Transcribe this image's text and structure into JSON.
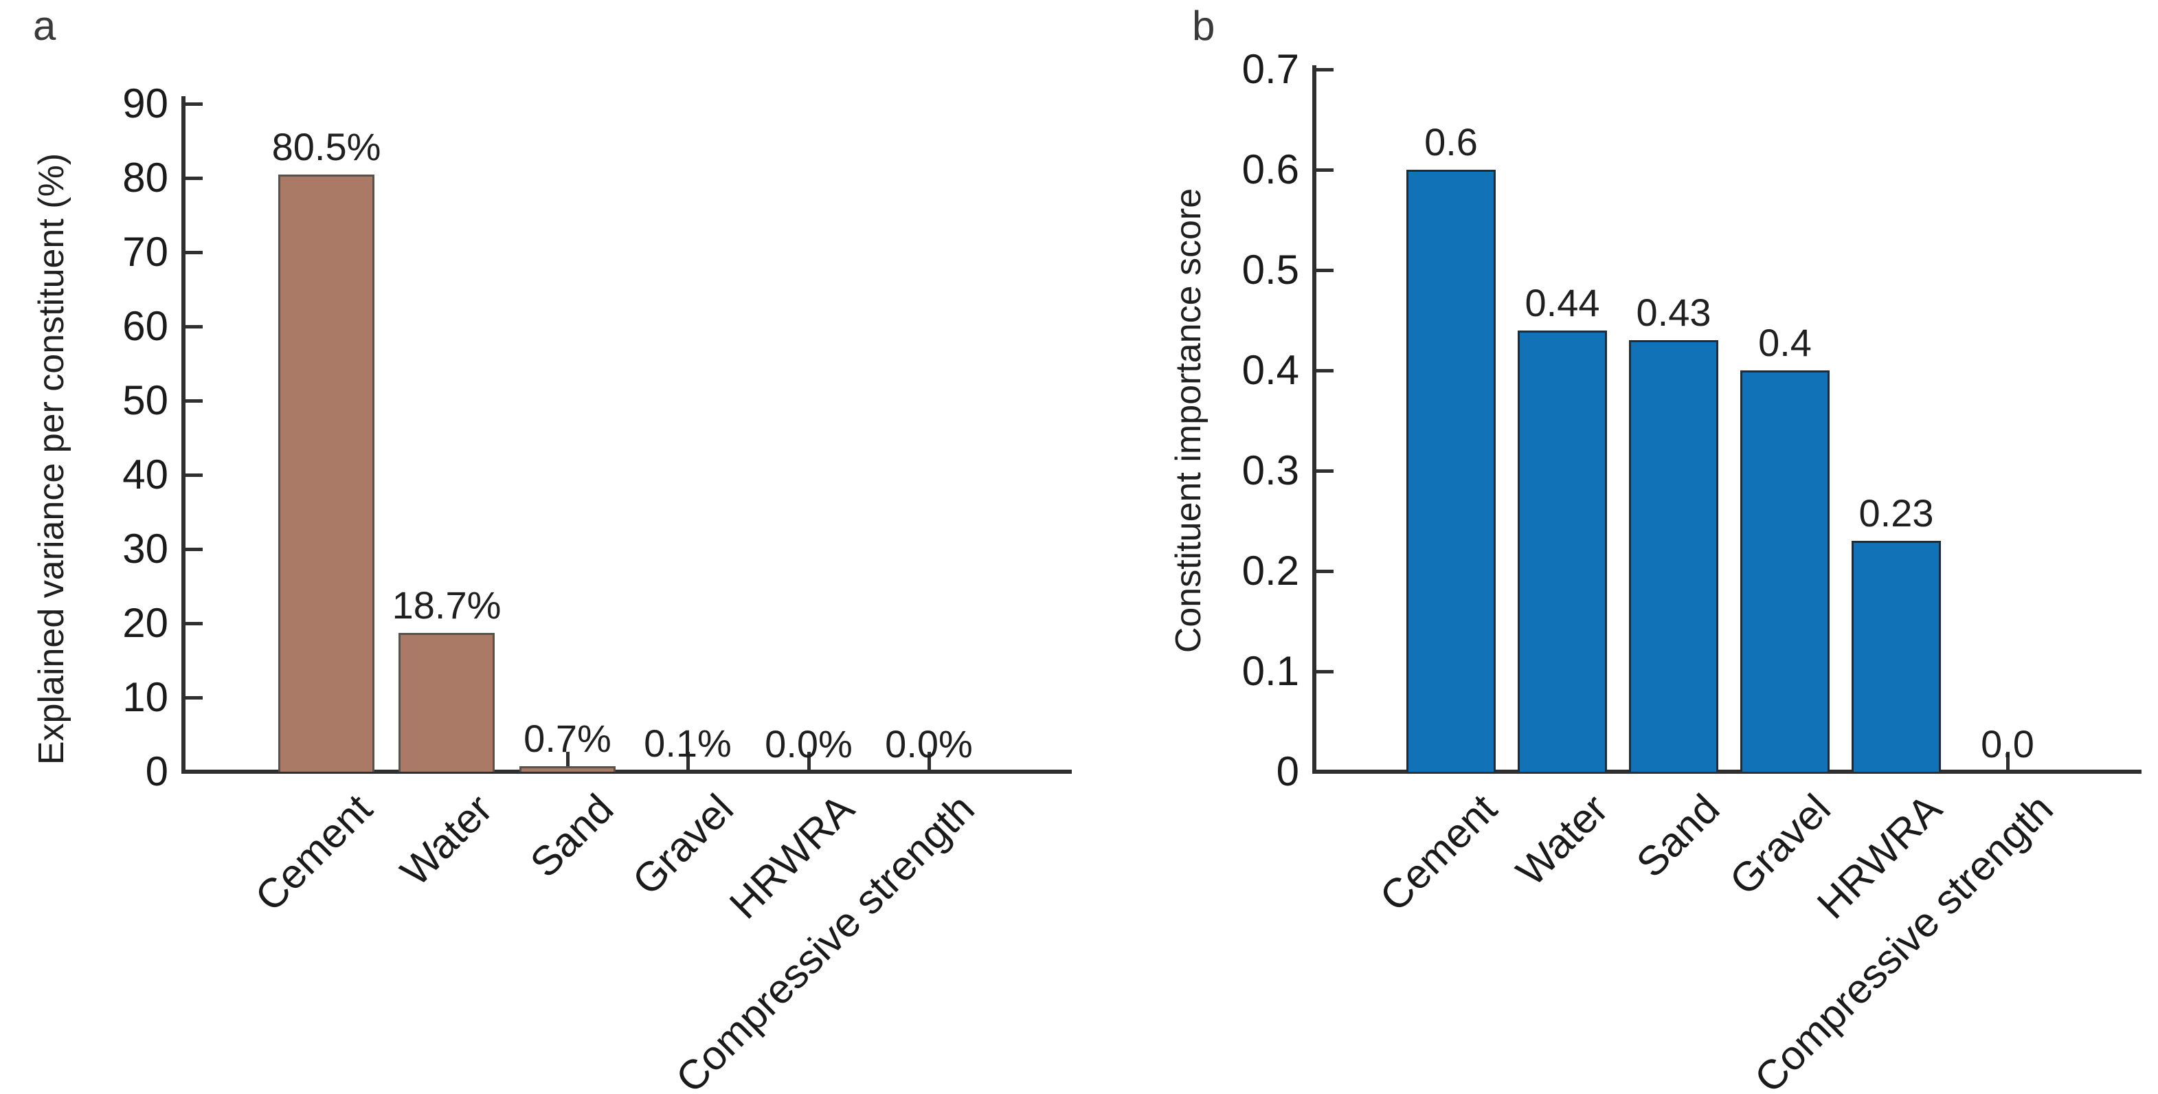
{
  "figure": {
    "background_color": "#ffffff",
    "axis_color": "#2f2f2f",
    "text_color": "#1a1a1a"
  },
  "chart_data": [
    {
      "type": "bar",
      "panel_label": "a",
      "title": "",
      "xlabel": "",
      "ylabel": "Explained variance per constituent (%)",
      "categories": [
        "Cement",
        "Water",
        "Sand",
        "Gravel",
        "HRWRA",
        "Compressive strength"
      ],
      "values": [
        80.5,
        18.7,
        0.7,
        0.1,
        0.0,
        0.0
      ],
      "value_labels": [
        "80.5%",
        "18.7%",
        "0.7%",
        "0.1%",
        "0.0%",
        "0.0%"
      ],
      "ylim": [
        0,
        90
      ],
      "ytick_labels": [
        "0",
        "10",
        "20",
        "30",
        "40",
        "50",
        "60",
        "70",
        "80",
        "90"
      ],
      "bar_color": "#ab7a67",
      "bar_edge_color": "#5a5248",
      "grid": false,
      "legend_position": "none",
      "xtick_rotation_degrees": 45
    },
    {
      "type": "bar",
      "panel_label": "b",
      "title": "",
      "xlabel": "",
      "ylabel": "Constituent importance score",
      "categories": [
        "Cement",
        "Water",
        "Sand",
        "Gravel",
        "HRWRA",
        "Compressive strength"
      ],
      "values": [
        0.6,
        0.44,
        0.43,
        0.4,
        0.23,
        0.0
      ],
      "value_labels": [
        "0.6",
        "0.44",
        "0.43",
        "0.4",
        "0.23",
        "0.0"
      ],
      "ylim": [
        0,
        0.7
      ],
      "ytick_labels": [
        "0",
        "0.1",
        "0.2",
        "0.3",
        "0.4",
        "0.5",
        "0.6",
        "0.7"
      ],
      "bar_color": "#1272b8",
      "bar_edge_color": "#1f2d3a",
      "grid": false,
      "legend_position": "none",
      "xtick_rotation_degrees": 45
    }
  ]
}
